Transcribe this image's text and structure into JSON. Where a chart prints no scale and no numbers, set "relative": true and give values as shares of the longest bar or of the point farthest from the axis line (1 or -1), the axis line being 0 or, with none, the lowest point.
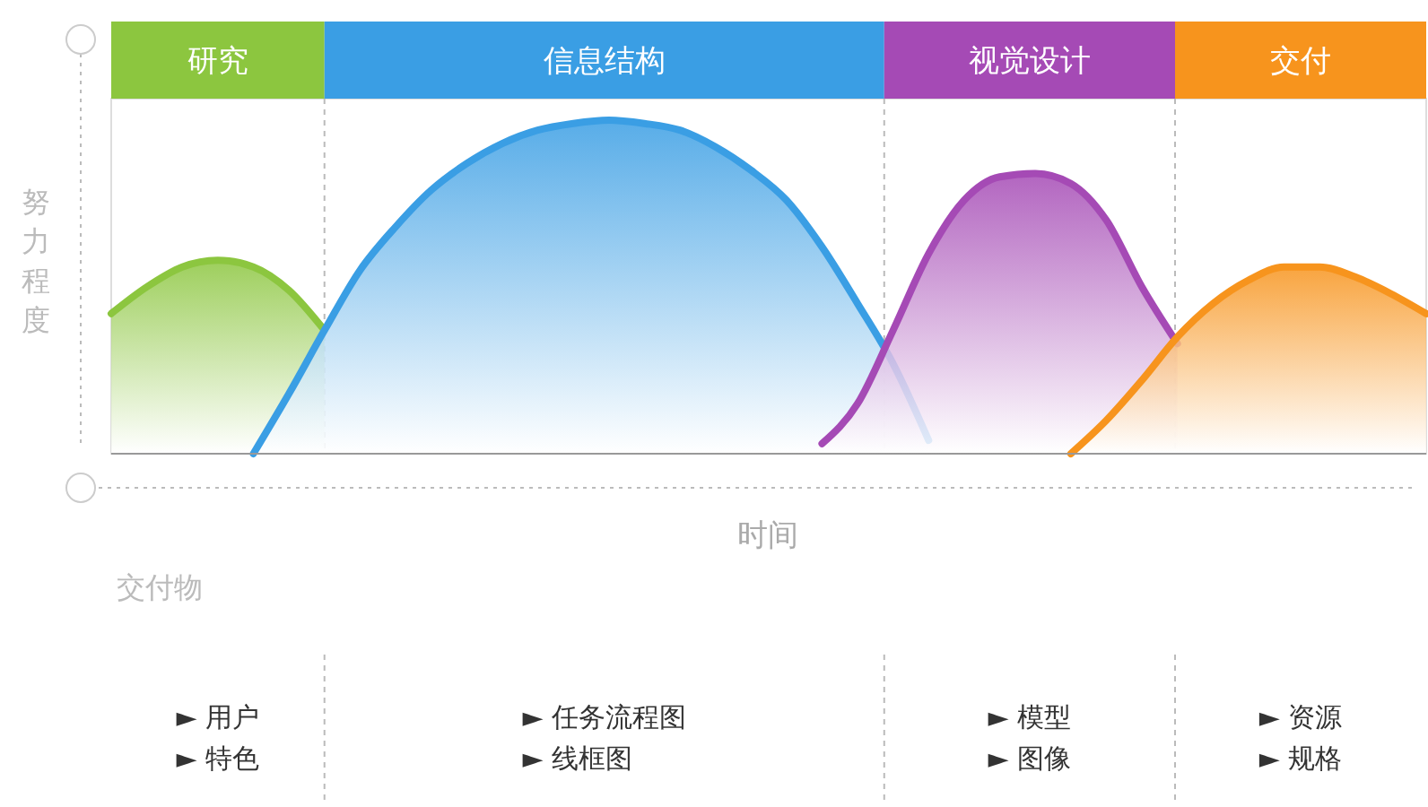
{
  "chart_data": {
    "type": "area",
    "relative": true,
    "xlabel": "时间",
    "ylabel": "努力程度",
    "tick_labels": false,
    "categories": [
      null,
      null,
      null,
      null,
      null,
      null,
      null,
      null,
      null,
      null,
      null,
      null,
      null,
      null,
      null,
      null,
      null,
      null,
      null,
      null,
      null,
      null,
      null,
      null,
      null,
      null,
      null,
      null,
      null,
      null,
      null,
      null,
      null,
      null,
      null,
      null,
      null,
      null
    ],
    "series": [
      {
        "name": "研究",
        "color": "#8cc63f",
        "values": [
          0.42,
          0.5,
          0.56,
          0.58,
          0.56,
          0.49,
          0.37,
          null,
          null,
          null,
          null,
          null,
          null,
          null,
          null,
          null,
          null,
          null,
          null,
          null,
          null,
          null,
          null,
          null,
          null,
          null,
          null,
          null,
          null,
          null,
          null,
          null,
          null,
          null,
          null,
          null,
          null,
          null
        ]
      },
      {
        "name": "信息结构",
        "color": "#3a9ee4",
        "values": [
          null,
          null,
          null,
          null,
          0.0,
          0.18,
          0.37,
          0.55,
          0.68,
          0.79,
          0.87,
          0.93,
          0.97,
          0.99,
          1.0,
          0.99,
          0.97,
          0.92,
          0.85,
          0.76,
          0.62,
          0.45,
          0.27,
          0.04,
          null,
          null,
          null,
          null,
          null,
          null,
          null,
          null,
          null,
          null,
          null,
          null,
          null,
          null
        ]
      },
      {
        "name": "视觉设计",
        "color": "#a54ab5",
        "values": [
          null,
          null,
          null,
          null,
          null,
          null,
          null,
          null,
          null,
          null,
          null,
          null,
          null,
          null,
          null,
          null,
          null,
          null,
          null,
          null,
          0.03,
          0.15,
          0.37,
          0.6,
          0.76,
          0.83,
          0.84,
          0.81,
          0.7,
          0.5,
          0.33,
          null,
          null,
          null,
          null,
          null,
          null,
          null
        ]
      },
      {
        "name": "交付",
        "color": "#f7941d",
        "values": [
          null,
          null,
          null,
          null,
          null,
          null,
          null,
          null,
          null,
          null,
          null,
          null,
          null,
          null,
          null,
          null,
          null,
          null,
          null,
          null,
          null,
          null,
          null,
          null,
          null,
          null,
          null,
          0.0,
          0.1,
          0.22,
          0.35,
          0.45,
          0.52,
          0.56,
          0.56,
          0.53,
          0.48,
          0.42
        ]
      }
    ],
    "annotations": [
      "交付物",
      "► 用户\n► 特色",
      "► 任务流程图\n► 线框图",
      "► 模型\n► 图像",
      "► 资源\n► 规格"
    ]
  }
}
